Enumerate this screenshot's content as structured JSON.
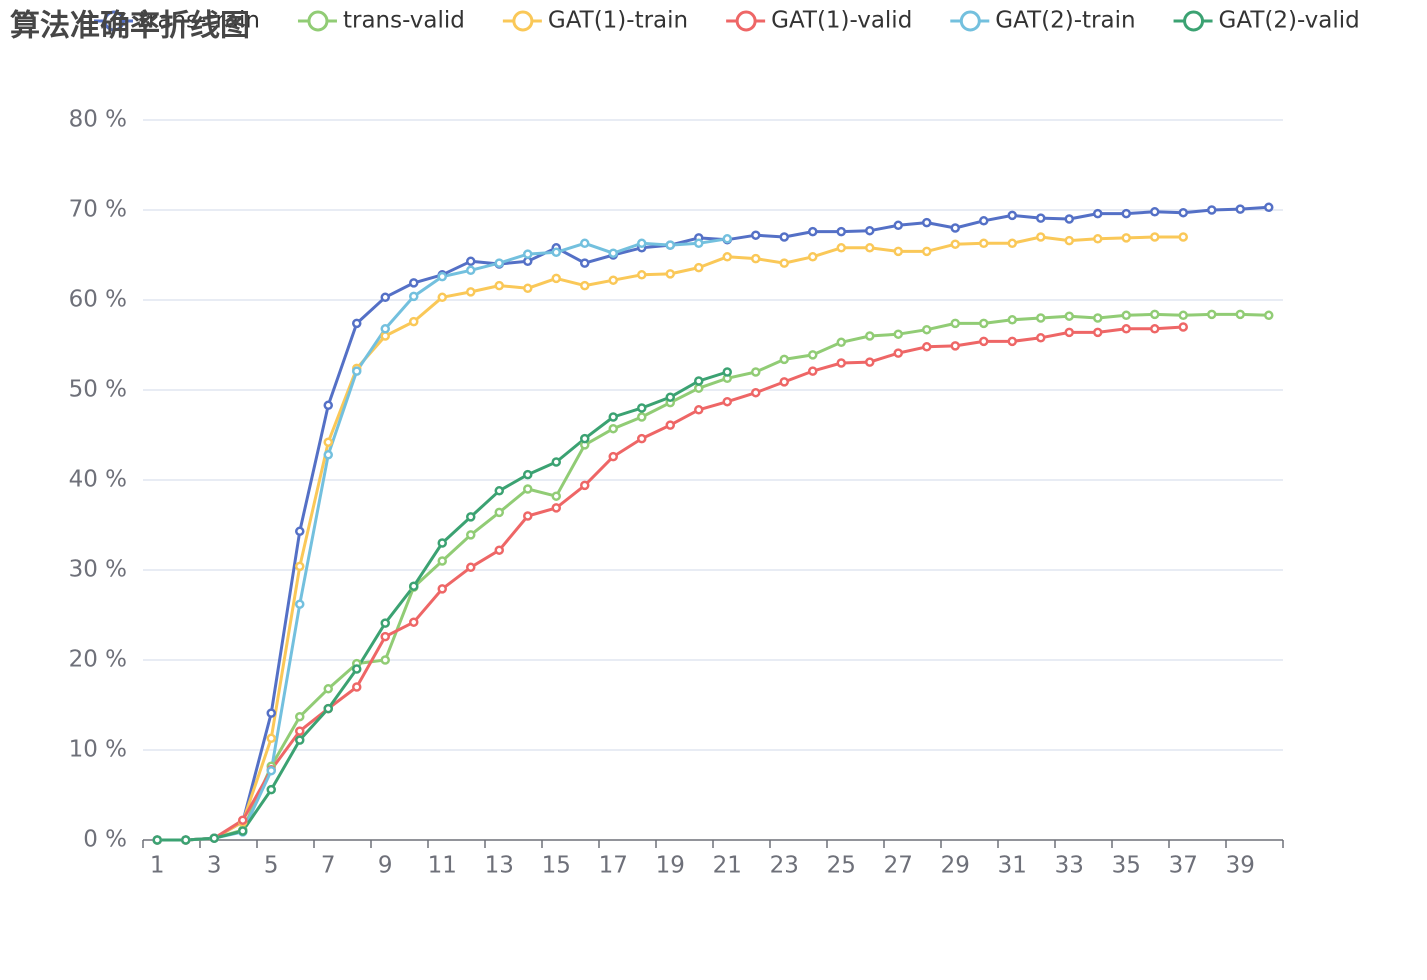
{
  "chart_data": {
    "type": "line",
    "title": "算法准确率折线图",
    "categories": [
      1,
      null,
      3,
      null,
      5,
      null,
      7,
      null,
      9,
      null,
      11,
      null,
      13,
      null,
      15,
      null,
      17,
      null,
      19,
      null,
      21,
      null,
      23,
      null,
      25,
      null,
      27,
      null,
      29,
      null,
      31,
      null,
      33,
      null,
      35,
      null,
      37,
      null,
      39,
      null
    ],
    "ylim": [
      0,
      80
    ],
    "yticks": [
      {
        "value": 0,
        "label": "0 %"
      },
      {
        "value": 10,
        "label": "10 %"
      },
      {
        "value": 20,
        "label": "20 %"
      },
      {
        "value": 30,
        "label": "30 %"
      },
      {
        "value": 40,
        "label": "40 %"
      },
      {
        "value": 50,
        "label": "50 %"
      },
      {
        "value": 60,
        "label": "60 %"
      },
      {
        "value": 70,
        "label": "70 %"
      },
      {
        "value": 80,
        "label": "80 %"
      }
    ],
    "grid": true,
    "series": [
      {
        "name": "trans-train",
        "color": "#5470c6",
        "values": [
          0,
          0,
          0.2,
          2,
          14.1,
          34.3,
          48.3,
          57.4,
          60.3,
          61.9,
          62.8,
          64.3,
          64,
          64.3,
          65.8,
          64.1,
          65,
          65.8,
          66.1,
          66.9,
          66.7,
          67.2,
          67,
          67.6,
          67.6,
          67.7,
          68.3,
          68.6,
          68,
          68.8,
          69.4,
          69.1,
          69,
          69.6,
          69.6,
          69.8,
          69.7,
          70,
          70.1,
          70.3
        ]
      },
      {
        "name": "trans-valid",
        "color": "#91cc75",
        "values": [
          0,
          0,
          0.2,
          1.1,
          8.2,
          13.7,
          16.8,
          19.6,
          20,
          28.1,
          31,
          33.9,
          36.4,
          39,
          38.2,
          43.9,
          45.7,
          47,
          48.6,
          50.2,
          51.3,
          52,
          53.4,
          53.9,
          55.3,
          56,
          56.2,
          56.7,
          57.4,
          57.4,
          57.8,
          58,
          58.2,
          58,
          58.3,
          58.4,
          58.3,
          58.4,
          58.4,
          58.3
        ]
      },
      {
        "name": "GAT(1)-train",
        "color": "#fac858",
        "values": [
          0,
          0,
          0.2,
          2,
          11.3,
          30.4,
          44.2,
          52.4,
          56,
          57.6,
          60.3,
          60.9,
          61.6,
          61.3,
          62.4,
          61.6,
          62.2,
          62.8,
          62.9,
          63.6,
          64.8,
          64.6,
          64.1,
          64.8,
          65.8,
          65.8,
          65.4,
          65.4,
          66.2,
          66.3,
          66.3,
          67,
          66.6,
          66.8,
          66.9,
          67,
          67,
          null,
          null,
          null
        ]
      },
      {
        "name": "GAT(1)-valid",
        "color": "#ee6666",
        "values": [
          0,
          0,
          0.2,
          2.2,
          7.8,
          12.1,
          14.6,
          17,
          22.6,
          24.2,
          27.9,
          30.3,
          32.2,
          36,
          36.9,
          39.4,
          42.6,
          44.6,
          46.1,
          47.8,
          48.7,
          49.7,
          50.9,
          52.1,
          53,
          53.1,
          54.1,
          54.8,
          54.9,
          55.4,
          55.4,
          55.8,
          56.4,
          56.4,
          56.8,
          56.8,
          57,
          null,
          null,
          null
        ]
      },
      {
        "name": "GAT(2)-train",
        "color": "#73c0de",
        "values": [
          0,
          0,
          0.2,
          0.9,
          7.7,
          26.2,
          42.8,
          52.1,
          56.8,
          60.4,
          62.6,
          63.3,
          64.1,
          65.1,
          65.3,
          66.3,
          65.2,
          66.3,
          66.1,
          66.3,
          66.8,
          null,
          null,
          null,
          null,
          null,
          null,
          null,
          null,
          null,
          null,
          null,
          null,
          null,
          null,
          null,
          null,
          null,
          null,
          null
        ]
      },
      {
        "name": "GAT(2)-valid",
        "color": "#3ba272",
        "values": [
          0,
          0,
          0.2,
          1,
          5.6,
          11.1,
          14.6,
          19,
          24.1,
          28.2,
          33,
          35.9,
          38.8,
          40.6,
          42,
          44.6,
          47,
          48,
          49.2,
          51,
          52,
          null,
          null,
          null,
          null,
          null,
          null,
          null,
          null,
          null,
          null,
          null,
          null,
          null,
          null,
          null,
          null,
          null,
          null,
          null
        ]
      }
    ]
  }
}
